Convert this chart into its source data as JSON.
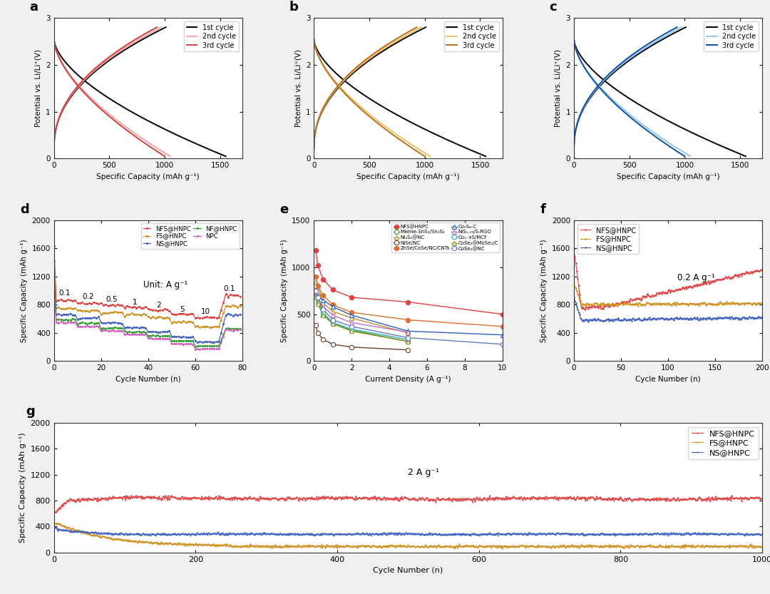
{
  "fig_width": 10.8,
  "fig_height": 8.33,
  "bg_color": "#f0f0f0",
  "panel_bg": "#ffffff",
  "abc_ylabel": "Potential vs. Li/Li⁺(V)",
  "abc_xlabel": "Specific Capacity (mAh g⁻¹)",
  "legend_cycles": [
    "1st cycle",
    "2nd cycle",
    "3rd cycle"
  ],
  "panel_a_colors": [
    "#000000",
    "#f4a5a5",
    "#d04040"
  ],
  "panel_b_colors": [
    "#000000",
    "#f0c060",
    "#b87020"
  ],
  "panel_c_colors": [
    "#000000",
    "#90c8f0",
    "#1050a0"
  ],
  "d_labels": [
    "NFS@HNPC",
    "FS@HNPC",
    "NS@HNPC",
    "NF@HNPC",
    "NPC"
  ],
  "d_colors": [
    "#e04040",
    "#d09020",
    "#4060c0",
    "#30a030",
    "#d060c0"
  ],
  "e_labels": [
    "NFS@HNPC",
    "Mxene-SnS₂/Sn₃S₄",
    "Ni₃S₂@NC",
    "NiSe/NC",
    "ZnSe/CoSe/NC/CNTs",
    "Co₉S₈-C",
    "NiS₁.₀₃/S-RGO",
    "Co₁₋xS/MCF",
    "CoSe₂@MoSe₂/C",
    "CoSe₂@NC"
  ],
  "e_colors": [
    "#e04040",
    "#30a030",
    "#c09030",
    "#704030",
    "#e07030",
    "#3060c0",
    "#c070c0",
    "#30b0b0",
    "#909020",
    "#6080c0"
  ],
  "e_x_data": [
    [
      0.1,
      0.2,
      0.5,
      1,
      2,
      5,
      10
    ],
    [
      0.1,
      0.2,
      0.5,
      1,
      2,
      5
    ],
    [
      0.1,
      0.2,
      0.5,
      1,
      2,
      5
    ],
    [
      0.1,
      0.2,
      0.5,
      1,
      2,
      5
    ],
    [
      0.1,
      0.2,
      0.5,
      1,
      2,
      5,
      10
    ],
    [
      0.1,
      0.2,
      0.5,
      1,
      2,
      5,
      10
    ],
    [
      0.1,
      0.2,
      0.5,
      1,
      2,
      5
    ],
    [
      0.1,
      0.2,
      0.5,
      1,
      2,
      5
    ],
    [
      0.1,
      0.2,
      0.5,
      1,
      2,
      5
    ],
    [
      0.1,
      0.2,
      0.5,
      1,
      2,
      5,
      10
    ]
  ],
  "e_y_data": [
    [
      1180,
      1020,
      870,
      760,
      680,
      630,
      500
    ],
    [
      800,
      700,
      490,
      400,
      330,
      210
    ],
    [
      850,
      750,
      620,
      530,
      460,
      300
    ],
    [
      380,
      300,
      230,
      180,
      150,
      120
    ],
    [
      900,
      800,
      700,
      600,
      520,
      440,
      370
    ],
    [
      720,
      690,
      650,
      580,
      490,
      320,
      280
    ],
    [
      700,
      650,
      580,
      490,
      410,
      310
    ],
    [
      680,
      620,
      510,
      410,
      340,
      230
    ],
    [
      680,
      610,
      490,
      400,
      320,
      210
    ],
    [
      750,
      680,
      550,
      440,
      370,
      250,
      180
    ]
  ],
  "e_markers": [
    "o",
    "o",
    "^",
    "o",
    "o",
    "^",
    "^",
    "o",
    "^",
    "o"
  ],
  "e_filled": [
    true,
    false,
    false,
    false,
    true,
    false,
    false,
    false,
    false,
    false
  ],
  "f_labels": [
    "NFS@HNPC",
    "FS@HNPC",
    "NS@HNPC"
  ],
  "f_colors": [
    "#e04040",
    "#d09020",
    "#4060c0"
  ],
  "f_annotation": "0.2 A g⁻¹",
  "g_labels": [
    "NFS@HNPC",
    "FS@HNPC",
    "NS@HNPC"
  ],
  "g_colors": [
    "#e04040",
    "#d09020",
    "#4060c0"
  ],
  "g_annotation": "2 A g⁻¹"
}
